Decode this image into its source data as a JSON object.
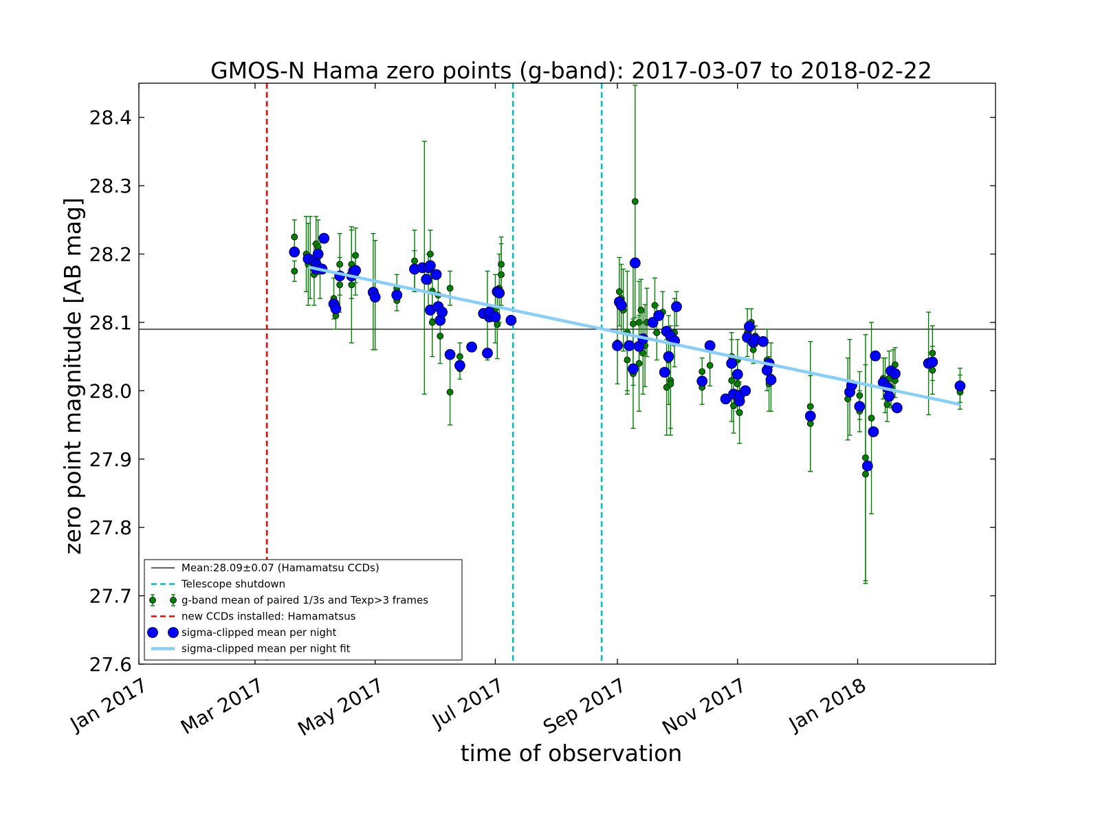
{
  "chart_data": {
    "type": "scatter",
    "title": "GMOS-N Hama zero points (g-band): 2017-03-07 to 2018-02-22",
    "xlabel": "time of observation",
    "ylabel": "zero point magnitude [AB mag]",
    "xlim": [
      "2017-01-01",
      "2018-03-12"
    ],
    "ylim": [
      27.6,
      28.45
    ],
    "x_ticks": [
      {
        "date": "2017-01-01",
        "label": "Jan 2017"
      },
      {
        "date": "2017-03-01",
        "label": "Mar 2017"
      },
      {
        "date": "2017-05-01",
        "label": "May 2017"
      },
      {
        "date": "2017-07-01",
        "label": "Jul 2017"
      },
      {
        "date": "2017-09-01",
        "label": "Sep 2017"
      },
      {
        "date": "2017-11-01",
        "label": "Nov 2017"
      },
      {
        "date": "2018-01-01",
        "label": "Jan 2018"
      }
    ],
    "y_ticks": [
      "27.6",
      "27.7",
      "27.8",
      "27.9",
      "28.0",
      "28.1",
      "28.2",
      "28.3",
      "28.4"
    ],
    "grid": false,
    "legend_position": "lower-left",
    "colors": {
      "mean_line": "#000000",
      "shutdown": "#00bfbf",
      "gband": "#007f00",
      "new_ccd": "#ff0000",
      "nightly_mean": "#0000ff",
      "fit": "#87cefa"
    },
    "reference_lines": {
      "mean": {
        "y": 28.09,
        "label": "Mean:28.09±0.07 (Hamamatsu CCDs)"
      },
      "new_ccds": {
        "x": "2017-03-07",
        "label": "new CCDs installed: Hamamatsus"
      },
      "shutdown": {
        "x": [
          "2017-07-10",
          "2017-08-24"
        ],
        "label": "Telescope shutdown"
      }
    },
    "fit": {
      "label": "sigma-clipped mean per night fit",
      "points": [
        {
          "x": "2017-03-28",
          "y": 28.181
        },
        {
          "x": "2018-02-22",
          "y": 27.98
        }
      ]
    },
    "series": [
      {
        "name": "g-band mean of paired 1/3s and Texp>3 frames",
        "kind": "errorbar",
        "points": [
          {
            "x": "2017-03-21",
            "y": 28.225,
            "err": 0.025
          },
          {
            "x": "2017-03-21",
            "y": 28.175,
            "err": 0.015
          },
          {
            "x": "2017-03-27",
            "y": 28.2,
            "err": 0.055
          },
          {
            "x": "2017-03-28",
            "y": 28.185,
            "err": 0.06
          },
          {
            "x": "2017-03-29",
            "y": 28.195,
            "err": 0.06
          },
          {
            "x": "2017-03-31",
            "y": 28.17,
            "err": 0.045
          },
          {
            "x": "2017-04-01",
            "y": 28.215,
            "err": 0.04
          },
          {
            "x": "2017-04-02",
            "y": 28.21,
            "err": 0.04
          },
          {
            "x": "2017-04-03",
            "y": 28.18,
            "err": 0.045
          },
          {
            "x": "2017-04-10",
            "y": 28.135,
            "err": 0.03
          },
          {
            "x": "2017-04-11",
            "y": 28.11,
            "err": 0.02
          },
          {
            "x": "2017-04-13",
            "y": 28.185,
            "err": 0.045
          },
          {
            "x": "2017-04-13",
            "y": 28.155,
            "err": 0.04
          },
          {
            "x": "2017-04-19",
            "y": 28.185,
            "err": 0.05
          },
          {
            "x": "2017-04-19",
            "y": 28.155,
            "err": 0.085
          },
          {
            "x": "2017-04-21",
            "y": 28.198,
            "err": 0.04
          },
          {
            "x": "2017-04-21",
            "y": 28.17,
            "err": 0.03
          },
          {
            "x": "2017-04-30",
            "y": 28.145,
            "err": 0.085
          },
          {
            "x": "2017-05-01",
            "y": 28.14,
            "err": 0.08
          },
          {
            "x": "2017-05-12",
            "y": 28.15,
            "err": 0.02
          },
          {
            "x": "2017-05-12",
            "y": 28.132,
            "err": 0.015
          },
          {
            "x": "2017-05-21",
            "y": 28.19,
            "err": 0.045
          },
          {
            "x": "2017-05-21",
            "y": 28.175,
            "err": 0.03
          },
          {
            "x": "2017-05-26",
            "y": 28.18,
            "err": 0.185
          },
          {
            "x": "2017-05-28",
            "y": 28.16,
            "err": 0.04
          },
          {
            "x": "2017-05-29",
            "y": 28.2,
            "err": 0.035
          },
          {
            "x": "2017-05-30",
            "y": 28.145,
            "err": 0.04
          },
          {
            "x": "2017-05-30",
            "y": 28.1,
            "err": 0.05
          },
          {
            "x": "2017-06-02",
            "y": 28.14,
            "err": 0.035
          },
          {
            "x": "2017-06-03",
            "y": 28.08,
            "err": 0.04
          },
          {
            "x": "2017-06-08",
            "y": 28.15,
            "err": 0.025
          },
          {
            "x": "2017-06-08",
            "y": 27.998,
            "err": 0.048
          },
          {
            "x": "2017-06-13",
            "y": 28.05,
            "err": 0.02
          },
          {
            "x": "2017-06-13",
            "y": 28.032,
            "err": 0.015
          },
          {
            "x": "2017-06-27",
            "y": 28.11,
            "err": 0.065
          },
          {
            "x": "2017-07-01",
            "y": 28.12,
            "err": 0.05
          },
          {
            "x": "2017-07-02",
            "y": 28.097,
            "err": 0.05
          },
          {
            "x": "2017-07-03",
            "y": 28.15,
            "err": 0.05
          },
          {
            "x": "2017-07-04",
            "y": 28.17,
            "err": 0.045
          },
          {
            "x": "2017-07-04",
            "y": 28.185,
            "err": 0.04
          },
          {
            "x": "2017-09-01",
            "y": 28.07,
            "err": 0.06
          },
          {
            "x": "2017-09-02",
            "y": 28.145,
            "err": 0.05
          },
          {
            "x": "2017-09-03",
            "y": 28.135,
            "err": 0.05
          },
          {
            "x": "2017-09-04",
            "y": 28.118,
            "err": 0.06
          },
          {
            "x": "2017-09-06",
            "y": 28.085,
            "err": 0.09
          },
          {
            "x": "2017-09-06",
            "y": 28.045,
            "err": 0.045
          },
          {
            "x": "2017-09-09",
            "y": 28.098,
            "err": 0.09
          },
          {
            "x": "2017-09-09",
            "y": 28.025,
            "err": 0.08
          },
          {
            "x": "2017-09-10",
            "y": 28.277,
            "err": 0.17
          },
          {
            "x": "2017-09-12",
            "y": 28.1,
            "err": 0.06
          },
          {
            "x": "2017-09-12",
            "y": 28.04,
            "err": 0.07
          },
          {
            "x": "2017-09-13",
            "y": 28.118,
            "err": 0.045
          },
          {
            "x": "2017-09-14",
            "y": 28.055,
            "err": 0.06
          },
          {
            "x": "2017-09-15",
            "y": 28.066,
            "err": 0.06
          },
          {
            "x": "2017-09-16",
            "y": 28.1,
            "err": 0.05
          },
          {
            "x": "2017-09-20",
            "y": 28.125,
            "err": 0.04
          },
          {
            "x": "2017-09-21",
            "y": 28.085,
            "err": 0.04
          },
          {
            "x": "2017-09-24",
            "y": 28.115,
            "err": 0.03
          },
          {
            "x": "2017-09-26",
            "y": 28.005,
            "err": 0.07
          },
          {
            "x": "2017-09-27",
            "y": 28.045,
            "err": 0.065
          },
          {
            "x": "2017-09-28",
            "y": 28.015,
            "err": 0.08
          },
          {
            "x": "2017-09-28",
            "y": 28.01,
            "err": 0.065
          },
          {
            "x": "2017-09-30",
            "y": 28.085,
            "err": 0.05
          },
          {
            "x": "2017-10-01",
            "y": 28.12,
            "err": 0.025
          },
          {
            "x": "2017-10-14",
            "y": 28.005,
            "err": 0.025
          },
          {
            "x": "2017-10-14",
            "y": 28.028,
            "err": 0.02
          },
          {
            "x": "2017-10-18",
            "y": 28.037,
            "err": 0.03
          },
          {
            "x": "2017-10-29",
            "y": 28.05,
            "err": 0.035
          },
          {
            "x": "2017-10-29",
            "y": 28.015,
            "err": 0.06
          },
          {
            "x": "2017-10-30",
            "y": 27.978,
            "err": 0.04
          },
          {
            "x": "2017-11-01",
            "y": 28.045,
            "err": 0.03
          },
          {
            "x": "2017-11-01",
            "y": 28.01,
            "err": 0.04
          },
          {
            "x": "2017-11-02",
            "y": 27.968,
            "err": 0.045
          },
          {
            "x": "2017-11-06",
            "y": 28.085,
            "err": 0.035
          },
          {
            "x": "2017-11-08",
            "y": 28.1,
            "err": 0.02
          },
          {
            "x": "2017-11-09",
            "y": 28.06,
            "err": 0.02
          },
          {
            "x": "2017-11-10",
            "y": 28.08,
            "err": 0.015
          },
          {
            "x": "2017-11-16",
            "y": 28.045,
            "err": 0.045
          },
          {
            "x": "2017-11-17",
            "y": 28.01,
            "err": 0.04
          },
          {
            "x": "2017-11-18",
            "y": 28.02,
            "err": 0.05
          },
          {
            "x": "2017-12-08",
            "y": 27.977,
            "err": 0.095
          },
          {
            "x": "2017-12-08",
            "y": 27.952,
            "err": 0.07
          },
          {
            "x": "2017-12-27",
            "y": 27.988,
            "err": 0.06
          },
          {
            "x": "2017-12-28",
            "y": 28.005,
            "err": 0.07
          },
          {
            "x": "2018-01-02",
            "y": 27.993,
            "err": 0.035
          },
          {
            "x": "2018-01-02",
            "y": 27.97,
            "err": 0.03
          },
          {
            "x": "2018-01-05",
            "y": 27.902,
            "err": 0.18
          },
          {
            "x": "2018-01-05",
            "y": 27.878,
            "err": 0.16
          },
          {
            "x": "2018-01-08",
            "y": 27.96,
            "err": 0.14
          },
          {
            "x": "2018-01-14",
            "y": 28.018,
            "err": 0.03
          },
          {
            "x": "2018-01-15",
            "y": 28.008,
            "err": 0.04
          },
          {
            "x": "2018-01-16",
            "y": 27.98,
            "err": 0.025
          },
          {
            "x": "2018-01-17",
            "y": 28.018,
            "err": 0.04
          },
          {
            "x": "2018-01-18",
            "y": 28.005,
            "err": 0.03
          },
          {
            "x": "2018-01-19",
            "y": 28.03,
            "err": 0.03
          },
          {
            "x": "2018-01-20",
            "y": 28.015,
            "err": 0.025
          },
          {
            "x": "2018-01-20",
            "y": 28.038,
            "err": 0.025
          },
          {
            "x": "2018-02-06",
            "y": 28.04,
            "err": 0.075
          },
          {
            "x": "2018-02-08",
            "y": 28.055,
            "err": 0.04
          },
          {
            "x": "2018-02-08",
            "y": 28.03,
            "err": 0.035
          },
          {
            "x": "2018-02-22",
            "y": 28.008,
            "err": 0.025
          },
          {
            "x": "2018-02-22",
            "y": 27.998,
            "err": 0.025
          }
        ]
      },
      {
        "name": "sigma-clipped mean per night",
        "kind": "marker",
        "points": [
          {
            "x": "2017-03-21",
            "y": 28.203
          },
          {
            "x": "2017-03-28",
            "y": 28.193
          },
          {
            "x": "2017-03-31",
            "y": 28.19
          },
          {
            "x": "2017-04-01",
            "y": 28.185
          },
          {
            "x": "2017-04-01",
            "y": 28.178
          },
          {
            "x": "2017-04-02",
            "y": 28.2
          },
          {
            "x": "2017-04-04",
            "y": 28.178
          },
          {
            "x": "2017-04-05",
            "y": 28.223
          },
          {
            "x": "2017-04-10",
            "y": 28.127
          },
          {
            "x": "2017-04-11",
            "y": 28.12
          },
          {
            "x": "2017-04-13",
            "y": 28.168
          },
          {
            "x": "2017-04-19",
            "y": 28.168
          },
          {
            "x": "2017-04-20",
            "y": 28.175
          },
          {
            "x": "2017-04-21",
            "y": 28.176
          },
          {
            "x": "2017-04-30",
            "y": 28.144
          },
          {
            "x": "2017-05-01",
            "y": 28.137
          },
          {
            "x": "2017-05-12",
            "y": 28.14
          },
          {
            "x": "2017-05-21",
            "y": 28.178
          },
          {
            "x": "2017-05-25",
            "y": 28.18
          },
          {
            "x": "2017-05-27",
            "y": 28.163
          },
          {
            "x": "2017-05-28",
            "y": 28.18
          },
          {
            "x": "2017-05-29",
            "y": 28.183
          },
          {
            "x": "2017-05-29",
            "y": 28.118
          },
          {
            "x": "2017-06-01",
            "y": 28.17
          },
          {
            "x": "2017-06-02",
            "y": 28.123
          },
          {
            "x": "2017-06-03",
            "y": 28.103
          },
          {
            "x": "2017-06-04",
            "y": 28.115
          },
          {
            "x": "2017-06-08",
            "y": 28.053
          },
          {
            "x": "2017-06-13",
            "y": 28.037
          },
          {
            "x": "2017-06-19",
            "y": 28.064
          },
          {
            "x": "2017-06-25",
            "y": 28.113
          },
          {
            "x": "2017-06-27",
            "y": 28.055
          },
          {
            "x": "2017-06-28",
            "y": 28.108
          },
          {
            "x": "2017-06-28",
            "y": 28.115
          },
          {
            "x": "2017-07-01",
            "y": 28.108
          },
          {
            "x": "2017-07-02",
            "y": 28.145
          },
          {
            "x": "2017-07-03",
            "y": 28.143
          },
          {
            "x": "2017-07-09",
            "y": 28.103
          },
          {
            "x": "2017-09-01",
            "y": 28.066
          },
          {
            "x": "2017-09-02",
            "y": 28.13
          },
          {
            "x": "2017-09-03",
            "y": 28.125
          },
          {
            "x": "2017-09-07",
            "y": 28.066
          },
          {
            "x": "2017-09-09",
            "y": 28.032
          },
          {
            "x": "2017-09-10",
            "y": 28.187
          },
          {
            "x": "2017-09-12",
            "y": 28.065
          },
          {
            "x": "2017-09-14",
            "y": 28.076
          },
          {
            "x": "2017-09-19",
            "y": 28.1
          },
          {
            "x": "2017-09-22",
            "y": 28.11
          },
          {
            "x": "2017-09-25",
            "y": 28.027
          },
          {
            "x": "2017-09-26",
            "y": 28.087
          },
          {
            "x": "2017-09-27",
            "y": 28.05
          },
          {
            "x": "2017-09-28",
            "y": 28.08
          },
          {
            "x": "2017-09-30",
            "y": 28.073
          },
          {
            "x": "2017-10-01",
            "y": 28.123
          },
          {
            "x": "2017-10-14",
            "y": 28.014
          },
          {
            "x": "2017-10-18",
            "y": 28.066
          },
          {
            "x": "2017-10-26",
            "y": 27.988
          },
          {
            "x": "2017-10-29",
            "y": 28.04
          },
          {
            "x": "2017-10-30",
            "y": 27.995
          },
          {
            "x": "2017-11-01",
            "y": 28.024
          },
          {
            "x": "2017-11-02",
            "y": 27.985
          },
          {
            "x": "2017-11-02",
            "y": 27.993
          },
          {
            "x": "2017-11-05",
            "y": 28.0
          },
          {
            "x": "2017-11-06",
            "y": 28.078
          },
          {
            "x": "2017-11-07",
            "y": 28.094
          },
          {
            "x": "2017-11-09",
            "y": 28.071
          },
          {
            "x": "2017-11-10",
            "y": 28.075
          },
          {
            "x": "2017-11-14",
            "y": 28.072
          },
          {
            "x": "2017-11-16",
            "y": 28.03
          },
          {
            "x": "2017-11-17",
            "y": 28.04
          },
          {
            "x": "2017-11-18",
            "y": 28.016
          },
          {
            "x": "2017-12-08",
            "y": 27.963
          },
          {
            "x": "2017-12-28",
            "y": 27.998
          },
          {
            "x": "2017-12-29",
            "y": 28.008
          },
          {
            "x": "2018-01-02",
            "y": 27.977
          },
          {
            "x": "2018-01-06",
            "y": 27.89
          },
          {
            "x": "2018-01-09",
            "y": 27.94
          },
          {
            "x": "2018-01-10",
            "y": 28.051
          },
          {
            "x": "2018-01-14",
            "y": 28.012
          },
          {
            "x": "2018-01-16",
            "y": 28.005
          },
          {
            "x": "2018-01-17",
            "y": 27.992
          },
          {
            "x": "2018-01-18",
            "y": 28.029
          },
          {
            "x": "2018-01-20",
            "y": 28.025
          },
          {
            "x": "2018-01-21",
            "y": 27.975
          },
          {
            "x": "2018-02-06",
            "y": 28.04
          },
          {
            "x": "2018-02-08",
            "y": 28.042
          },
          {
            "x": "2018-02-22",
            "y": 28.007
          }
        ]
      }
    ]
  }
}
